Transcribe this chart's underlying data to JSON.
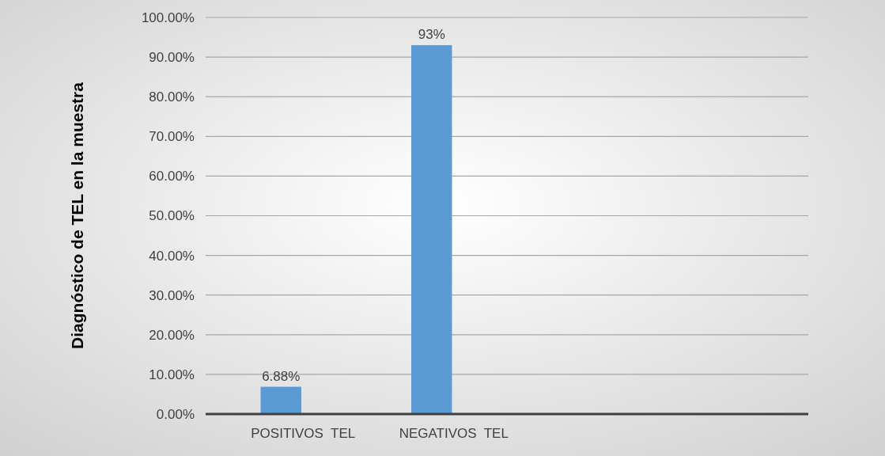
{
  "chart_data": {
    "type": "bar",
    "ylabel": "Diagnóstico de TEL en la muestra",
    "categories": [
      "POSITIVOS  TEL",
      "NEGATIVOS  TEL",
      null,
      null
    ],
    "values": [
      6.88,
      93,
      null,
      null
    ],
    "color": "#5b9bd5",
    "value_labels": [
      "6.88%",
      "93%",
      null,
      null
    ],
    "ylim": [
      0,
      100
    ],
    "yticks": [
      {
        "value": 0,
        "label": "0.00%"
      },
      {
        "value": 10,
        "label": "10.00%"
      },
      {
        "value": 20,
        "label": "20.00%"
      },
      {
        "value": 30,
        "label": "30.00%"
      },
      {
        "value": 40,
        "label": "40.00%"
      },
      {
        "value": 50,
        "label": "50.00%"
      },
      {
        "value": 60,
        "label": "60.00%"
      },
      {
        "value": 70,
        "label": "70.00%"
      },
      {
        "value": 80,
        "label": "80.00%"
      },
      {
        "value": 90,
        "label": "90.00%"
      },
      {
        "value": 100,
        "label": "100.00%"
      }
    ],
    "grid": "y"
  }
}
